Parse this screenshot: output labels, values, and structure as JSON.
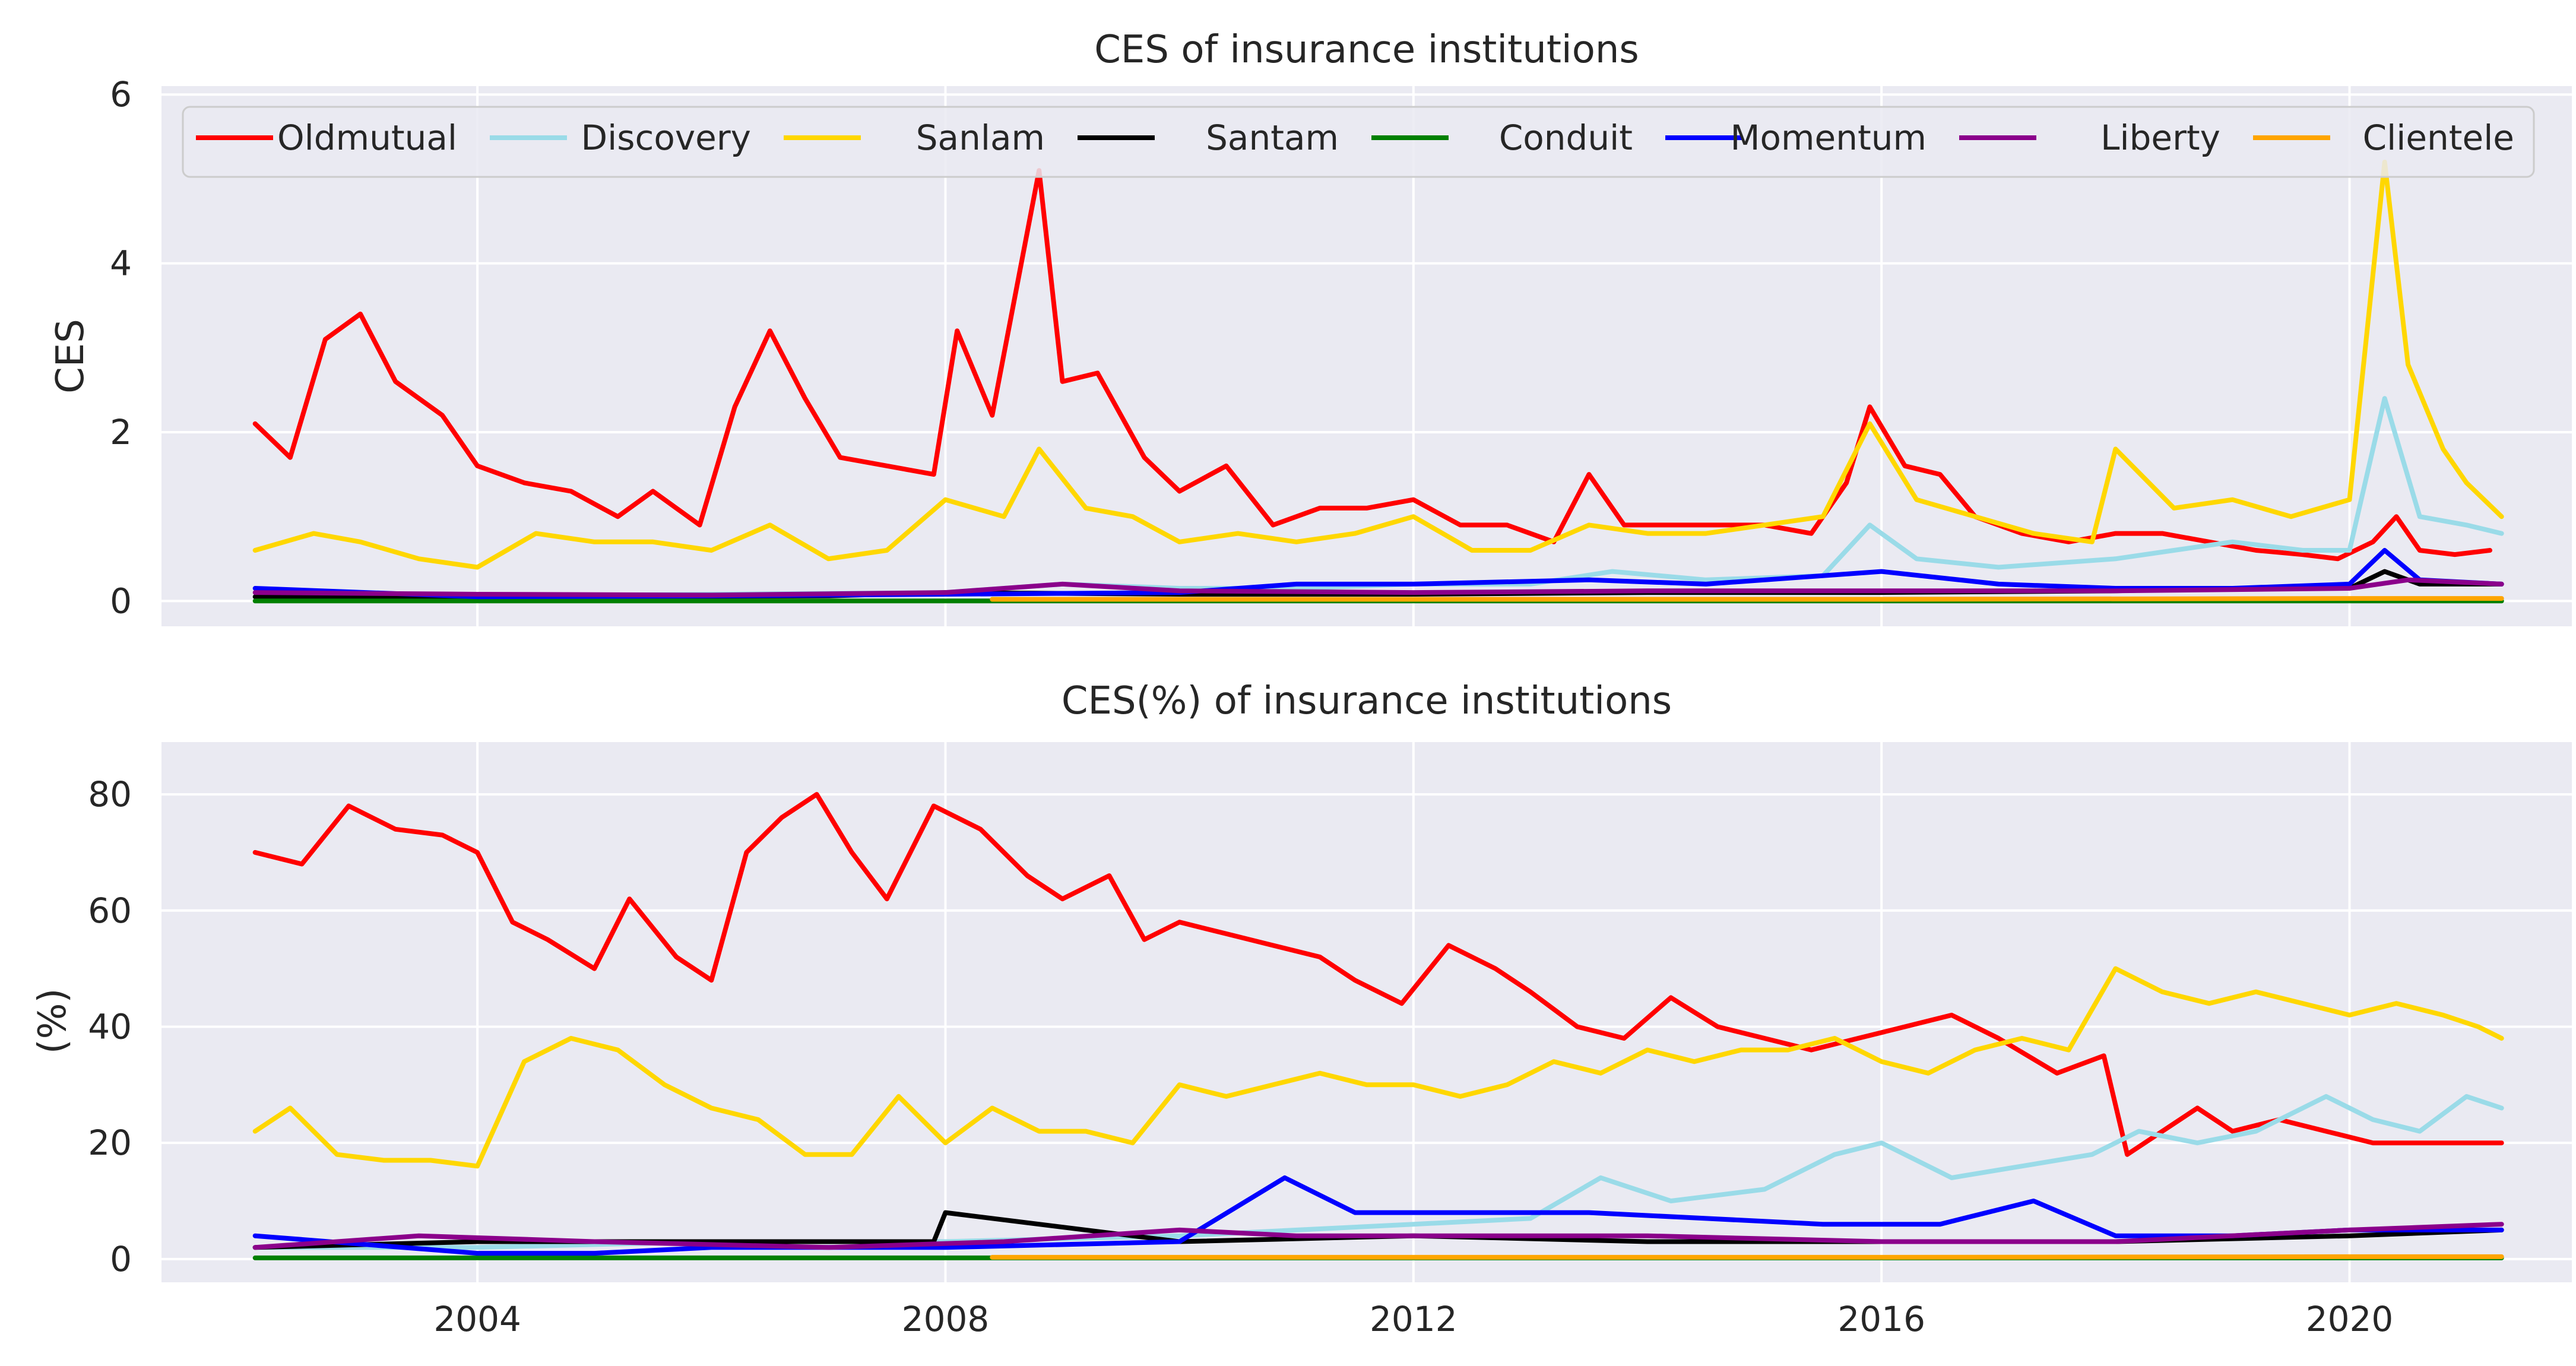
{
  "chart_data": [
    {
      "type": "line",
      "title": "CES of insurance institutions",
      "xlabel": "",
      "ylabel": "CES",
      "xlim": [
        2001.3,
        2021.9
      ],
      "ylim": [
        -0.3,
        6.1
      ],
      "xticks": [
        "2004",
        "2008",
        "2012",
        "2016",
        "2020"
      ],
      "yticks": [
        "0",
        "2",
        "4",
        "6"
      ],
      "legend_position": "top",
      "legend": [
        "Oldmutual",
        "Discovery",
        "Sanlam",
        "Santam",
        "Conduit",
        "Momentum",
        "Liberty",
        "Clientele"
      ],
      "series": [
        {
          "name": "Oldmutual",
          "color": "#ff0000",
          "x": [
            2002.1,
            2002.4,
            2002.7,
            2003.0,
            2003.3,
            2003.7,
            2004.0,
            2004.4,
            2004.8,
            2005.2,
            2005.5,
            2005.9,
            2006.2,
            2006.5,
            2006.8,
            2007.1,
            2007.5,
            2007.9,
            2008.1,
            2008.4,
            2008.8,
            2009.0,
            2009.3,
            2009.7,
            2010.0,
            2010.4,
            2010.8,
            2011.2,
            2011.6,
            2012.0,
            2012.4,
            2012.8,
            2013.2,
            2013.5,
            2013.8,
            2014.2,
            2014.6,
            2015.0,
            2015.4,
            2015.7,
            2015.9,
            2016.2,
            2016.5,
            2016.8,
            2017.2,
            2017.6,
            2018.0,
            2018.4,
            2018.8,
            2019.2,
            2019.6,
            2019.9,
            2020.2,
            2020.4,
            2020.6,
            2020.9,
            2021.2
          ],
          "values": [
            2.1,
            1.7,
            3.1,
            3.4,
            2.6,
            2.2,
            1.6,
            1.4,
            1.3,
            1.0,
            1.3,
            0.9,
            2.3,
            3.2,
            2.4,
            1.7,
            1.6,
            1.5,
            3.2,
            2.2,
            5.1,
            2.6,
            2.7,
            1.7,
            1.3,
            1.6,
            0.9,
            1.1,
            1.1,
            1.2,
            0.9,
            0.9,
            0.7,
            1.5,
            0.9,
            0.9,
            0.9,
            0.9,
            0.8,
            1.4,
            2.3,
            1.6,
            1.5,
            1.0,
            0.8,
            0.7,
            0.8,
            0.8,
            0.7,
            0.6,
            0.55,
            0.5,
            0.7,
            1.0,
            0.6,
            0.55,
            0.6
          ]
        },
        {
          "name": "Discovery",
          "color": "#9adbe8",
          "x": [
            2002.1,
            2004.0,
            2006.0,
            2008.0,
            2009.0,
            2010.0,
            2011.0,
            2012.0,
            2013.0,
            2013.7,
            2014.5,
            2015.5,
            2015.9,
            2016.3,
            2017.0,
            2018.0,
            2018.5,
            2019.0,
            2019.6,
            2020.0,
            2020.3,
            2020.6,
            2021.0,
            2021.3
          ],
          "values": [
            0.05,
            0.06,
            0.08,
            0.1,
            0.2,
            0.15,
            0.15,
            0.2,
            0.2,
            0.35,
            0.25,
            0.3,
            0.9,
            0.5,
            0.4,
            0.5,
            0.6,
            0.7,
            0.6,
            0.6,
            2.4,
            1.0,
            0.9,
            0.8
          ]
        },
        {
          "name": "Sanlam",
          "color": "#ffd700",
          "x": [
            2002.1,
            2002.6,
            2003.0,
            2003.5,
            2004.0,
            2004.5,
            2005.0,
            2005.5,
            2006.0,
            2006.5,
            2007.0,
            2007.5,
            2008.0,
            2008.5,
            2008.8,
            2009.2,
            2009.6,
            2010.0,
            2010.5,
            2011.0,
            2011.5,
            2012.0,
            2012.5,
            2013.0,
            2013.5,
            2014.0,
            2014.5,
            2015.0,
            2015.5,
            2015.9,
            2016.3,
            2016.8,
            2017.3,
            2017.8,
            2018.0,
            2018.5,
            2019.0,
            2019.5,
            2020.0,
            2020.3,
            2020.5,
            2020.8,
            2021.0,
            2021.3
          ],
          "values": [
            0.6,
            0.8,
            0.7,
            0.5,
            0.4,
            0.8,
            0.7,
            0.7,
            0.6,
            0.9,
            0.5,
            0.6,
            1.2,
            1.0,
            1.8,
            1.1,
            1.0,
            0.7,
            0.8,
            0.7,
            0.8,
            1.0,
            0.6,
            0.6,
            0.9,
            0.8,
            0.8,
            0.9,
            1.0,
            2.1,
            1.2,
            1.0,
            0.8,
            0.7,
            1.8,
            1.1,
            1.2,
            1.0,
            1.2,
            5.2,
            2.8,
            1.8,
            1.4,
            1.0
          ]
        },
        {
          "name": "Santam",
          "color": "#000000",
          "x": [
            2002.1,
            2005.0,
            2007.0,
            2008.0,
            2010.0,
            2012.0,
            2014.0,
            2016.0,
            2018.0,
            2019.0,
            2020.0,
            2020.3,
            2020.6,
            2021.3
          ],
          "values": [
            0.05,
            0.05,
            0.06,
            0.1,
            0.08,
            0.08,
            0.1,
            0.1,
            0.12,
            0.15,
            0.15,
            0.35,
            0.2,
            0.2
          ]
        },
        {
          "name": "Conduit",
          "color": "#008000",
          "x": [
            2002.1,
            2021.3
          ],
          "values": [
            0.0,
            0.0
          ]
        },
        {
          "name": "Momentum",
          "color": "#0000ff",
          "x": [
            2002.1,
            2004.0,
            2006.0,
            2008.0,
            2010.0,
            2011.0,
            2012.0,
            2013.5,
            2014.5,
            2016.0,
            2017.0,
            2018.0,
            2019.0,
            2020.0,
            2020.3,
            2020.6,
            2021.3
          ],
          "values": [
            0.15,
            0.05,
            0.06,
            0.08,
            0.1,
            0.2,
            0.2,
            0.25,
            0.2,
            0.35,
            0.2,
            0.15,
            0.15,
            0.2,
            0.6,
            0.25,
            0.2
          ]
        },
        {
          "name": "Liberty",
          "color": "#8b008b",
          "x": [
            2002.1,
            2004.0,
            2006.0,
            2008.0,
            2009.0,
            2010.0,
            2012.0,
            2014.0,
            2016.0,
            2018.0,
            2020.0,
            2020.5,
            2021.3
          ],
          "values": [
            0.1,
            0.08,
            0.07,
            0.1,
            0.2,
            0.12,
            0.1,
            0.12,
            0.12,
            0.12,
            0.15,
            0.25,
            0.2
          ]
        },
        {
          "name": "Clientele",
          "color": "#ffa500",
          "x": [
            2008.4,
            2012.0,
            2016.0,
            2020.0,
            2021.3
          ],
          "values": [
            0.02,
            0.02,
            0.02,
            0.03,
            0.03
          ]
        }
      ]
    },
    {
      "type": "line",
      "title": "CES(%) of insurance institutions",
      "xlabel": "",
      "ylabel": "(%)",
      "xlim": [
        2001.3,
        2021.9
      ],
      "ylim": [
        -4,
        89
      ],
      "xticks": [
        "2004",
        "2008",
        "2012",
        "2016",
        "2020"
      ],
      "yticks": [
        "0",
        "20",
        "40",
        "60",
        "80"
      ],
      "series": [
        {
          "name": "Oldmutual",
          "color": "#ff0000",
          "x": [
            2002.1,
            2002.5,
            2002.9,
            2003.3,
            2003.7,
            2004.0,
            2004.3,
            2004.6,
            2005.0,
            2005.3,
            2005.7,
            2006.0,
            2006.3,
            2006.6,
            2006.9,
            2007.2,
            2007.5,
            2007.9,
            2008.3,
            2008.7,
            2009.0,
            2009.4,
            2009.7,
            2010.0,
            2010.4,
            2010.8,
            2011.2,
            2011.5,
            2011.9,
            2012.3,
            2012.7,
            2013.0,
            2013.4,
            2013.8,
            2014.2,
            2014.6,
            2015.0,
            2015.4,
            2015.8,
            2016.2,
            2016.6,
            2017.0,
            2017.5,
            2017.9,
            2018.1,
            2018.4,
            2018.7,
            2019.0,
            2019.4,
            2019.8,
            2020.2,
            2020.6,
            2021.0,
            2021.3
          ],
          "values": [
            70,
            68,
            78,
            74,
            73,
            70,
            58,
            55,
            50,
            62,
            52,
            48,
            70,
            76,
            80,
            70,
            62,
            78,
            74,
            66,
            62,
            66,
            55,
            58,
            56,
            54,
            52,
            48,
            44,
            54,
            50,
            46,
            40,
            38,
            45,
            40,
            38,
            36,
            38,
            40,
            42,
            38,
            32,
            35,
            18,
            22,
            26,
            22,
            24,
            22,
            20,
            20,
            20,
            20
          ]
        },
        {
          "name": "Discovery",
          "color": "#9adbe8",
          "x": [
            2002.1,
            2004.0,
            2006.0,
            2008.0,
            2010.0,
            2012.0,
            2013.0,
            2013.6,
            2014.2,
            2015.0,
            2015.6,
            2016.0,
            2016.6,
            2017.2,
            2017.8,
            2018.2,
            2018.7,
            2019.2,
            2019.8,
            2020.2,
            2020.6,
            2021.0,
            2021.3
          ],
          "values": [
            2,
            2,
            3,
            3,
            4,
            6,
            7,
            14,
            10,
            12,
            18,
            20,
            14,
            16,
            18,
            22,
            20,
            22,
            28,
            24,
            22,
            28,
            26
          ]
        },
        {
          "name": "Sanlam",
          "color": "#ffd700",
          "x": [
            2002.1,
            2002.4,
            2002.8,
            2003.2,
            2003.6,
            2004.0,
            2004.4,
            2004.8,
            2005.2,
            2005.6,
            2006.0,
            2006.4,
            2006.8,
            2007.2,
            2007.6,
            2008.0,
            2008.4,
            2008.8,
            2009.2,
            2009.6,
            2010.0,
            2010.4,
            2010.8,
            2011.2,
            2011.6,
            2012.0,
            2012.4,
            2012.8,
            2013.2,
            2013.6,
            2014.0,
            2014.4,
            2014.8,
            2015.2,
            2015.6,
            2016.0,
            2016.4,
            2016.8,
            2017.2,
            2017.6,
            2018.0,
            2018.4,
            2018.8,
            2019.2,
            2019.6,
            2020.0,
            2020.4,
            2020.8,
            2021.1,
            2021.3
          ],
          "values": [
            22,
            26,
            18,
            17,
            17,
            16,
            34,
            38,
            36,
            30,
            26,
            24,
            18,
            18,
            28,
            20,
            26,
            22,
            22,
            20,
            30,
            28,
            30,
            32,
            30,
            30,
            28,
            30,
            34,
            32,
            36,
            34,
            36,
            36,
            38,
            34,
            32,
            36,
            38,
            36,
            50,
            46,
            44,
            46,
            44,
            42,
            44,
            42,
            40,
            38
          ]
        },
        {
          "name": "Santam",
          "color": "#000000",
          "x": [
            2002.1,
            2004.0,
            2006.0,
            2007.9,
            2008.0,
            2010.0,
            2012.0,
            2014.0,
            2016.0,
            2018.0,
            2020.0,
            2021.3
          ],
          "values": [
            2,
            3,
            3,
            3,
            8,
            3,
            4,
            3,
            3,
            3,
            4,
            5
          ]
        },
        {
          "name": "Conduit",
          "color": "#008000",
          "x": [
            2002.1,
            2021.3
          ],
          "values": [
            0.2,
            0.2
          ]
        },
        {
          "name": "Momentum",
          "color": "#0000ff",
          "x": [
            2002.1,
            2004.0,
            2005.0,
            2006.0,
            2008.0,
            2010.0,
            2010.9,
            2011.5,
            2012.5,
            2013.5,
            2014.5,
            2015.5,
            2016.5,
            2017.3,
            2018.0,
            2019.0,
            2020.0,
            2021.3
          ],
          "values": [
            4,
            1,
            1,
            2,
            2,
            3,
            14,
            8,
            8,
            8,
            7,
            6,
            6,
            10,
            4,
            4,
            5,
            5
          ]
        },
        {
          "name": "Liberty",
          "color": "#8b008b",
          "x": [
            2002.1,
            2003.5,
            2005.0,
            2007.0,
            2008.5,
            2010.0,
            2011.0,
            2012.5,
            2014.0,
            2016.0,
            2018.0,
            2020.0,
            2021.3
          ],
          "values": [
            2,
            4,
            3,
            2,
            3,
            5,
            4,
            4,
            4,
            3,
            3,
            5,
            6
          ]
        },
        {
          "name": "Clientele",
          "color": "#ffa500",
          "x": [
            2008.4,
            2012.0,
            2016.0,
            2020.0,
            2021.3
          ],
          "values": [
            0.3,
            0.3,
            0.3,
            0.4,
            0.4
          ]
        }
      ]
    }
  ]
}
